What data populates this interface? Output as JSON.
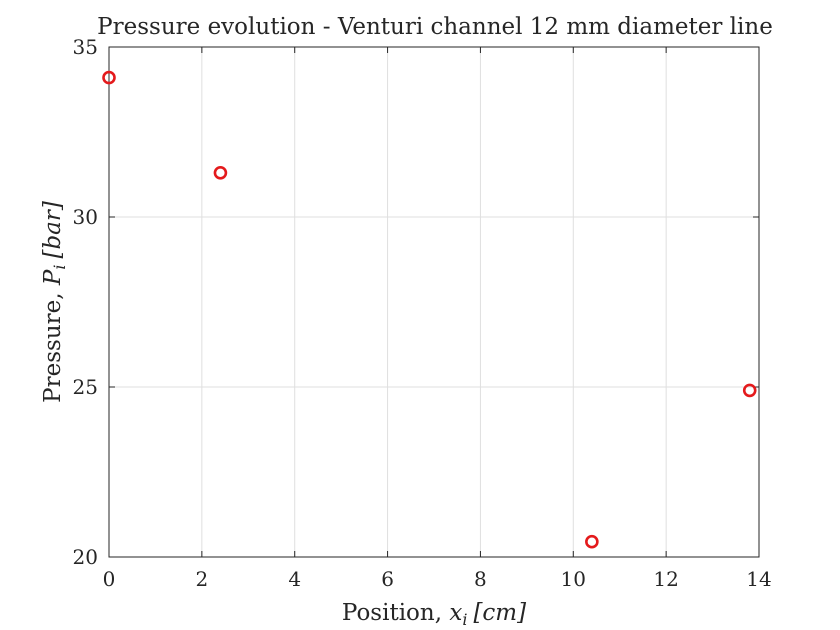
{
  "chart_data": {
    "type": "scatter",
    "title": "Pressure evolution - Venturi channel 12 mm diameter line",
    "xlabel": {
      "text": "Position, ",
      "var": "x",
      "sub": "i",
      "unit": "[cm]"
    },
    "ylabel": {
      "text": "Pressure, ",
      "var": "P",
      "sub": "i",
      "unit": "[bar]"
    },
    "xlim": [
      0,
      14
    ],
    "ylim": [
      20,
      35
    ],
    "xticks": [
      0,
      2,
      4,
      6,
      8,
      10,
      12,
      14
    ],
    "yticks": [
      20,
      25,
      30,
      35
    ],
    "grid": true,
    "marker": "circle-open",
    "marker_color": "#e41a1c",
    "series": [
      {
        "points": [
          {
            "x": 0,
            "y": 34.1
          },
          {
            "x": 2.4,
            "y": 31.3
          },
          {
            "x": 10.4,
            "y": 20.45
          },
          {
            "x": 13.8,
            "y": 24.9
          }
        ]
      }
    ]
  }
}
